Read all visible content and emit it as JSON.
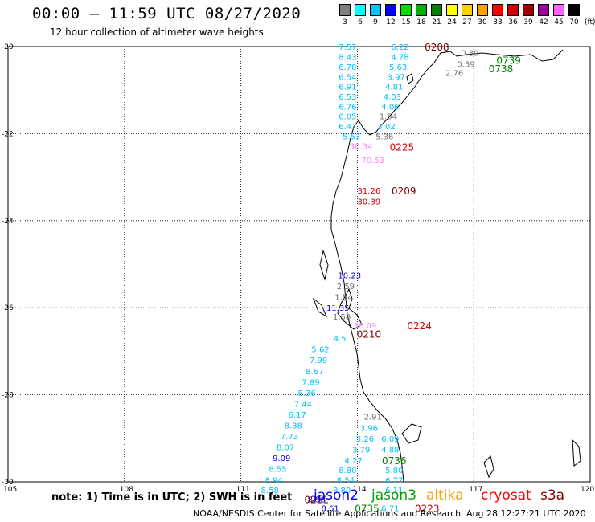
{
  "header": {
    "title": "00:00 – 11:59 UTC 08/27/2020",
    "subtitle": "12 hour collection of altimeter wave heights"
  },
  "scale": {
    "units": "(ft)",
    "bins": [
      {
        "label": "3",
        "color": "#7f7f7f"
      },
      {
        "label": "6",
        "color": "#00ffff"
      },
      {
        "label": "9",
        "color": "#00c8ff"
      },
      {
        "label": "12",
        "color": "#0000ff"
      },
      {
        "label": "15",
        "color": "#00e000"
      },
      {
        "label": "18",
        "color": "#00b000"
      },
      {
        "label": "21",
        "color": "#008000"
      },
      {
        "label": "24",
        "color": "#ffff00"
      },
      {
        "label": "27",
        "color": "#ffd000"
      },
      {
        "label": "30",
        "color": "#ffa000"
      },
      {
        "label": "33",
        "color": "#ff0000"
      },
      {
        "label": "36",
        "color": "#d00000"
      },
      {
        "label": "39",
        "color": "#a00000"
      },
      {
        "label": "42",
        "color": "#a000a0"
      },
      {
        "label": "45",
        "color": "#ff60ff"
      },
      {
        "label": "70",
        "color": "#000000"
      }
    ]
  },
  "axes": {
    "lat_labels": [
      "-20",
      "-22",
      "-24",
      "-26",
      "-28",
      "-30"
    ],
    "lon_labels": [
      "105",
      "108",
      "111",
      "114",
      "117",
      "120"
    ]
  },
  "observations": [
    {
      "text": "7.57",
      "color": "#00bfff",
      "lon": 113.75,
      "lat": -20.0
    },
    {
      "text": "8.43",
      "color": "#00bfff",
      "lon": 113.75,
      "lat": -20.23
    },
    {
      "text": "6.78",
      "color": "#00bfff",
      "lon": 113.75,
      "lat": -20.46
    },
    {
      "text": "6.54",
      "color": "#00bfff",
      "lon": 113.75,
      "lat": -20.69
    },
    {
      "text": "6.91",
      "color": "#00bfff",
      "lon": 113.75,
      "lat": -20.91
    },
    {
      "text": "6.53",
      "color": "#00bfff",
      "lon": 113.75,
      "lat": -21.14
    },
    {
      "text": "6.76",
      "color": "#00bfff",
      "lon": 113.75,
      "lat": -21.37
    },
    {
      "text": "6.05",
      "color": "#00bfff",
      "lon": 113.75,
      "lat": -21.6
    },
    {
      "text": "6.47",
      "color": "#00bfff",
      "lon": 113.75,
      "lat": -21.83
    },
    {
      "text": "5.53",
      "color": "#00bfff",
      "lon": 113.85,
      "lat": -22.06
    },
    {
      "text": "6.22",
      "color": "#00bfff",
      "lon": 115.1,
      "lat": -20.0
    },
    {
      "text": "4.78",
      "color": "#00bfff",
      "lon": 115.1,
      "lat": -20.23
    },
    {
      "text": "5.63",
      "color": "#00bfff",
      "lon": 115.05,
      "lat": -20.46
    },
    {
      "text": "3.97",
      "color": "#00bfff",
      "lon": 115.0,
      "lat": -20.69
    },
    {
      "text": "4.81",
      "color": "#00bfff",
      "lon": 114.95,
      "lat": -20.91
    },
    {
      "text": "4.03",
      "color": "#00bfff",
      "lon": 114.9,
      "lat": -21.14
    },
    {
      "text": "4.06",
      "color": "#00bfff",
      "lon": 114.85,
      "lat": -21.37
    },
    {
      "text": "1.54",
      "color": "#707070",
      "lon": 114.8,
      "lat": -21.6
    },
    {
      "text": "3.02",
      "color": "#00bfff",
      "lon": 114.75,
      "lat": -21.83
    },
    {
      "text": "5.36",
      "color": "#707070",
      "lon": 114.7,
      "lat": -22.06
    },
    {
      "text": "0.59",
      "color": "#707070",
      "lon": 116.8,
      "lat": -20.4
    },
    {
      "text": "0.89",
      "color": "#707070",
      "lon": 116.9,
      "lat": -20.14
    },
    {
      "text": "2.76",
      "color": "#707070",
      "lon": 116.5,
      "lat": -20.6
    },
    {
      "text": "30.34",
      "color": "#ff88ff",
      "lon": 114.1,
      "lat": -22.28
    },
    {
      "text": "70.53",
      "color": "#ff88ff",
      "lon": 114.4,
      "lat": -22.6
    },
    {
      "text": "31.26",
      "color": "#d00000",
      "lon": 114.3,
      "lat": -23.3
    },
    {
      "text": "30.39",
      "color": "#d00000",
      "lon": 114.3,
      "lat": -23.55
    },
    {
      "text": "10.23",
      "color": "#0000cc",
      "lon": 113.8,
      "lat": -25.25
    },
    {
      "text": "2.59",
      "color": "#707070",
      "lon": 113.7,
      "lat": -25.5
    },
    {
      "text": "1.54",
      "color": "#707070",
      "lon": 113.65,
      "lat": -25.75
    },
    {
      "text": "11.35",
      "color": "#0000cc",
      "lon": 113.5,
      "lat": -26.0
    },
    {
      "text": "1.58",
      "color": "#707070",
      "lon": 113.6,
      "lat": -26.2
    },
    {
      "text": "36.09",
      "color": "#ff88ff",
      "lon": 114.2,
      "lat": -26.4
    },
    {
      "text": "4.5",
      "color": "#00bfff",
      "lon": 113.55,
      "lat": -26.7
    },
    {
      "text": "5.62",
      "color": "#00bfff",
      "lon": 113.05,
      "lat": -26.95
    },
    {
      "text": "7.99",
      "color": "#00bfff",
      "lon": 113.0,
      "lat": -27.2
    },
    {
      "text": "8.67",
      "color": "#00bfff",
      "lon": 112.9,
      "lat": -27.45
    },
    {
      "text": "7.89",
      "color": "#00bfff",
      "lon": 112.8,
      "lat": -27.7
    },
    {
      "text": "8.36",
      "color": "#00bfff",
      "lon": 112.7,
      "lat": -27.95
    },
    {
      "text": "7.44",
      "color": "#00bfff",
      "lon": 112.6,
      "lat": -28.2
    },
    {
      "text": "6.17",
      "color": "#00bfff",
      "lon": 112.45,
      "lat": -28.45
    },
    {
      "text": "8.38",
      "color": "#00bfff",
      "lon": 112.35,
      "lat": -28.7
    },
    {
      "text": "7.73",
      "color": "#00bfff",
      "lon": 112.25,
      "lat": -28.95
    },
    {
      "text": "8.07",
      "color": "#00bfff",
      "lon": 112.15,
      "lat": -29.2
    },
    {
      "text": "9.09",
      "color": "#0000cc",
      "lon": 112.05,
      "lat": -29.45
    },
    {
      "text": "8.55",
      "color": "#00bfff",
      "lon": 111.95,
      "lat": -29.7
    },
    {
      "text": "8.94",
      "color": "#00bfff",
      "lon": 111.85,
      "lat": -29.95
    },
    {
      "text": "8.58",
      "color": "#00bfff",
      "lon": 111.75,
      "lat": -30.18
    },
    {
      "text": "2.91",
      "color": "#707070",
      "lon": 114.4,
      "lat": -28.5
    },
    {
      "text": "3.96",
      "color": "#00bfff",
      "lon": 114.3,
      "lat": -28.75
    },
    {
      "text": "3.26",
      "color": "#00bfff",
      "lon": 114.2,
      "lat": -29.0
    },
    {
      "text": "6.09",
      "color": "#00bfff",
      "lon": 114.85,
      "lat": -29.0
    },
    {
      "text": "3.79",
      "color": "#00bfff",
      "lon": 114.1,
      "lat": -29.25
    },
    {
      "text": "4.88",
      "color": "#00bfff",
      "lon": 114.85,
      "lat": -29.25
    },
    {
      "text": "4.27",
      "color": "#00bfff",
      "lon": 113.9,
      "lat": -29.5
    },
    {
      "text": "8.80",
      "color": "#00bfff",
      "lon": 113.75,
      "lat": -29.72
    },
    {
      "text": "5.80",
      "color": "#00bfff",
      "lon": 114.95,
      "lat": -29.72
    },
    {
      "text": "8.54",
      "color": "#00bfff",
      "lon": 113.7,
      "lat": -29.95
    },
    {
      "text": "6.77",
      "color": "#00bfff",
      "lon": 114.95,
      "lat": -29.95
    },
    {
      "text": "8.80",
      "color": "#00bfff",
      "lon": 113.6,
      "lat": -30.18
    },
    {
      "text": "6.11",
      "color": "#00bfff",
      "lon": 114.95,
      "lat": -30.18
    },
    {
      "text": "8.58",
      "color": "#0000cc",
      "lon": 112.95,
      "lat": -30.4
    },
    {
      "text": "8.61",
      "color": "#0000cc",
      "lon": 113.3,
      "lat": -30.6
    },
    {
      "text": "6.71",
      "color": "#00bfff",
      "lon": 114.85,
      "lat": -30.6
    }
  ],
  "passes": [
    {
      "text": "0208",
      "color": "#800000",
      "lon": 116.05,
      "lat": -20.0
    },
    {
      "text": "0739",
      "color": "#008000",
      "lon": 117.9,
      "lat": -20.3
    },
    {
      "text": "0738",
      "color": "#008000",
      "lon": 117.7,
      "lat": -20.5
    },
    {
      "text": "0225",
      "color": "#d00000",
      "lon": 115.15,
      "lat": -22.3
    },
    {
      "text": "0209",
      "color": "#800000",
      "lon": 115.2,
      "lat": -23.3
    },
    {
      "text": "0224",
      "color": "#d00000",
      "lon": 115.6,
      "lat": -26.4
    },
    {
      "text": "0210",
      "color": "#800000",
      "lon": 114.3,
      "lat": -26.6
    },
    {
      "text": "0736",
      "color": "#008000",
      "lon": 114.95,
      "lat": -29.5
    },
    {
      "text": "0211",
      "color": "#800000",
      "lon": 112.95,
      "lat": -30.4
    },
    {
      "text": "0735",
      "color": "#008000",
      "lon": 114.25,
      "lat": -30.6
    },
    {
      "text": "0223",
      "color": "#d00000",
      "lon": 115.8,
      "lat": -30.6
    }
  ],
  "footer": {
    "note": "note: 1) Time is in UTC; 2) SWH is in feet",
    "satellites": [
      {
        "name": "jason2",
        "color": "#0000ff"
      },
      {
        "name": "jason3",
        "color": "#00a000"
      },
      {
        "name": "altika",
        "color": "#ffa000"
      },
      {
        "name": "cryosat",
        "color": "#ff0000"
      },
      {
        "name": "s3a",
        "color": "#800000"
      }
    ],
    "credit": "NOAA/NESDIS Center for Satellite Applications and Research",
    "timestamp": "Aug 28 12:27:21 UTC 2020"
  }
}
